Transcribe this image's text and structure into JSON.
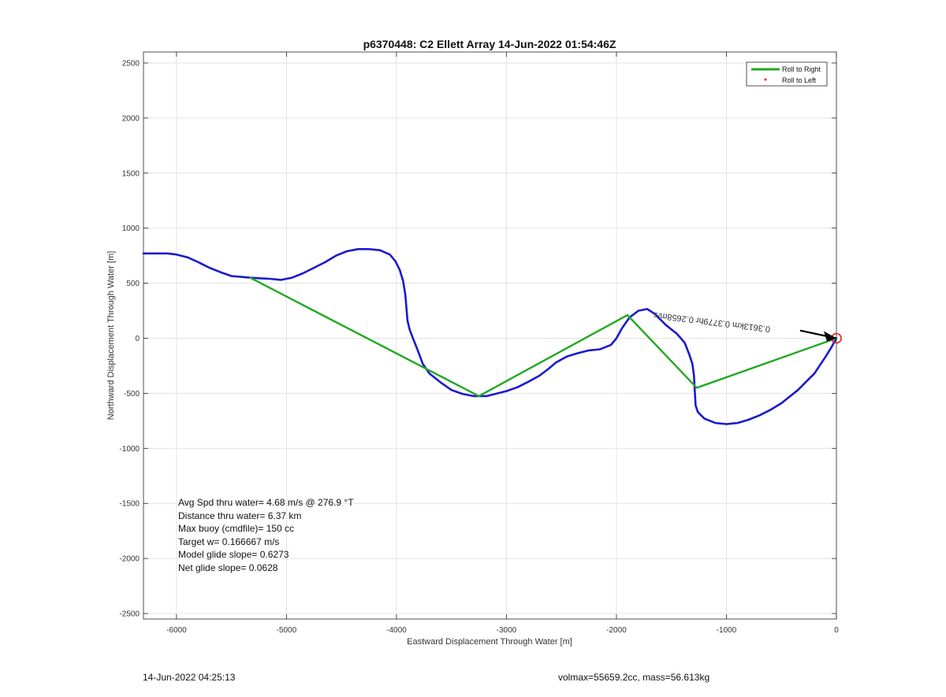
{
  "chart_data": {
    "type": "line",
    "title": "p6370448: C2 Ellett Array 14-Jun-2022 01:54:46Z",
    "xlabel": "Eastward Displacement Through Water [m]",
    "ylabel": "Northward Displacement Through Water [m]",
    "xlim": [
      -6300,
      0
    ],
    "ylim": [
      -2550,
      2600
    ],
    "xticks": [
      -6000,
      -5000,
      -4000,
      -3000,
      -2000,
      -1000,
      0
    ],
    "yticks": [
      -2500,
      -2000,
      -1500,
      -1000,
      -500,
      0,
      500,
      1000,
      1500,
      2000,
      2500
    ],
    "grid": true,
    "legend": {
      "location": "top-right",
      "entries": [
        {
          "label": "Roll to Right",
          "color": "#22a822",
          "marker": "line"
        },
        {
          "label": "Roll to Left",
          "color": "#e02020",
          "marker": "dot"
        }
      ]
    },
    "series": [
      {
        "color": "#1a1ad0",
        "x": [
          0,
          -50,
          -100,
          -200,
          -300,
          -350,
          -450,
          -500,
          -600,
          -700,
          -800,
          -900,
          -1000,
          -1100,
          -1200,
          -1260,
          -1280,
          -1285,
          -1290,
          -1295,
          -1310,
          -1340,
          -1380,
          -1450,
          -1550,
          -1650,
          -1720,
          -1800,
          -1880,
          -1950,
          -2000,
          -2050,
          -2150,
          -2250,
          -2350,
          -2450,
          -2550,
          -2620,
          -2700,
          -2800,
          -2900,
          -3000,
          -3100,
          -3180,
          -3250,
          -3300,
          -3400,
          -3500,
          -3600,
          -3700,
          -3760,
          -3810,
          -3850,
          -3880,
          -3900,
          -3910,
          -3920,
          -3940,
          -3970,
          -4010,
          -4060,
          -4150,
          -4250,
          -4350,
          -4450,
          -4550,
          -4650,
          -4750,
          -4850,
          -4950,
          -5050,
          -5150,
          -5250,
          -5330,
          -5380,
          -5500,
          -5600,
          -5700,
          -5800,
          -5900,
          -6000,
          -6080,
          -6150,
          -6220,
          -6300
        ],
        "y": [
          0,
          -90,
          -170,
          -320,
          -420,
          -470,
          -550,
          -590,
          -650,
          -700,
          -740,
          -770,
          -780,
          -770,
          -730,
          -670,
          -610,
          -520,
          -440,
          -340,
          -230,
          -140,
          -40,
          40,
          120,
          220,
          265,
          250,
          190,
          90,
          0,
          -60,
          -100,
          -110,
          -135,
          -165,
          -220,
          -280,
          -340,
          -395,
          -445,
          -480,
          -505,
          -525,
          -525,
          -525,
          -505,
          -470,
          -400,
          -320,
          -235,
          -100,
          0,
          80,
          160,
          280,
          400,
          520,
          620,
          700,
          760,
          800,
          810,
          810,
          790,
          750,
          690,
          640,
          590,
          550,
          530,
          540,
          545,
          550,
          555,
          565,
          600,
          640,
          690,
          735,
          760,
          770,
          770,
          770,
          770
        ]
      },
      {
        "name": "Roll to Right",
        "color": "#22a822",
        "x": [
          -5330,
          -3250,
          -1900,
          -1270,
          0
        ],
        "y": [
          550,
          -525,
          210,
          -450,
          0
        ]
      }
    ],
    "annotations": [
      {
        "text": "0.3613km",
        "rotated": true
      },
      {
        "text": "0.3779hr",
        "rotated": true
      },
      {
        "text": "0.2658m/s",
        "rotated": true
      }
    ]
  },
  "stats": [
    "Avg Spd thru water=  4.68 m/s @ 276.9 °T",
    "Distance thru water=  6.37 km",
    "Max buoy (cmdfile)= 150 cc",
    "Target w= 0.166667 m/s",
    "Model glide slope= 0.6273",
    "Net glide slope= 0.0628"
  ],
  "footer": {
    "left": "14-Jun-2022 04:25:13",
    "right": "volmax=55659.2cc, mass=56.613kg"
  }
}
